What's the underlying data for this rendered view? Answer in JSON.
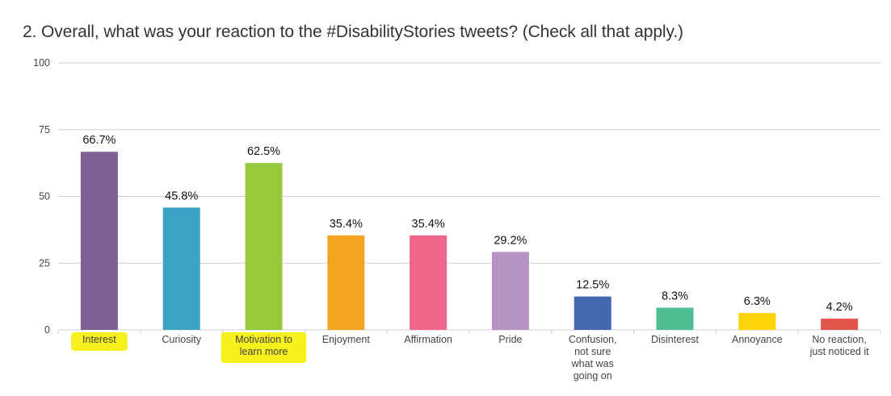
{
  "title": "2. Overall, what was your reaction to the #DisabilityStories tweets? (Check all that apply.)",
  "chart_data": {
    "type": "bar",
    "title": "2. Overall, what was your reaction to the #DisabilityStories tweets? (Check all that apply.)",
    "xlabel": "",
    "ylabel": "",
    "ylim": [
      0,
      100
    ],
    "yticks": [
      0,
      25,
      50,
      75,
      100
    ],
    "grid": true,
    "legend": "none",
    "categories": [
      [
        "Interest"
      ],
      [
        "Curiosity"
      ],
      [
        "Motivation to",
        "learn more"
      ],
      [
        "Enjoyment"
      ],
      [
        "Affirmation"
      ],
      [
        "Pride"
      ],
      [
        "Confusion,",
        "not sure",
        "what was",
        "going on"
      ],
      [
        "Disinterest"
      ],
      [
        "Annoyance"
      ],
      [
        "No reaction,",
        "just noticed it"
      ]
    ],
    "values": [
      66.7,
      45.8,
      62.5,
      35.4,
      35.4,
      29.2,
      12.5,
      8.3,
      6.3,
      4.2
    ],
    "value_labels": [
      "66.7%",
      "45.8%",
      "62.5%",
      "35.4%",
      "35.4%",
      "29.2%",
      "12.5%",
      "8.3%",
      "6.3%",
      "4.2%"
    ],
    "colors": [
      "#7d6193",
      "#3aa3c4",
      "#98c83c",
      "#f3a423",
      "#ee6689",
      "#b793c4",
      "#4367b0",
      "#4dbd92",
      "#fcd20b",
      "#e2564a"
    ],
    "highlighted_categories": [
      0,
      2
    ],
    "highlight_color": "#f6f01c"
  }
}
